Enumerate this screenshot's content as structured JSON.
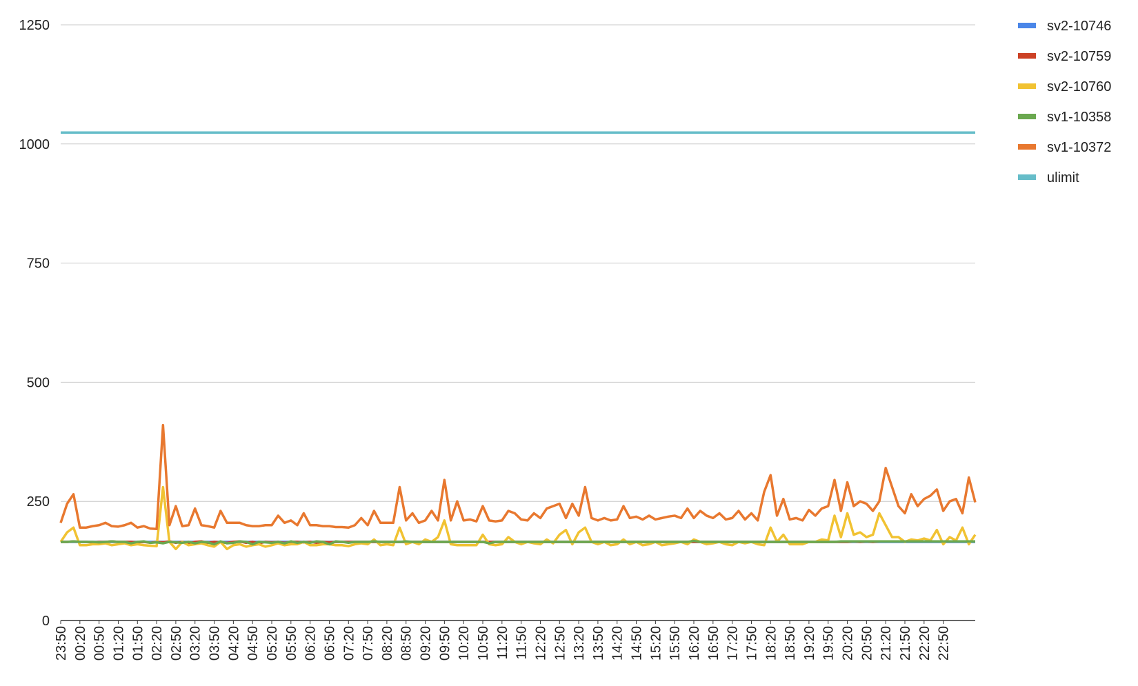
{
  "chart_data": {
    "type": "line",
    "categories": [
      "23:50",
      null,
      null,
      "00:20",
      null,
      null,
      "00:50",
      null,
      null,
      "01:20",
      null,
      null,
      "01:50",
      null,
      null,
      "02:20",
      null,
      null,
      "02:50",
      null,
      null,
      "03:20",
      null,
      null,
      "03:50",
      null,
      null,
      "04:20",
      null,
      null,
      "04:50",
      null,
      null,
      "05:20",
      null,
      null,
      "05:50",
      null,
      null,
      "06:20",
      null,
      null,
      "06:50",
      null,
      null,
      "07:20",
      null,
      null,
      "07:50",
      null,
      null,
      "08:20",
      null,
      null,
      "08:50",
      null,
      null,
      "09:20",
      null,
      null,
      "09:50",
      null,
      null,
      "10:20",
      null,
      null,
      "10:50",
      null,
      null,
      "11:20",
      null,
      null,
      "11:50",
      null,
      null,
      "12:20",
      null,
      null,
      "12:50",
      null,
      null,
      "13:20",
      null,
      null,
      "13:50",
      null,
      null,
      "14:20",
      null,
      null,
      "14:50",
      null,
      null,
      "15:20",
      null,
      null,
      "15:50",
      null,
      null,
      "16:20",
      null,
      null,
      "16:50",
      null,
      null,
      "17:20",
      null,
      null,
      "17:50",
      null,
      null,
      "18:20",
      null,
      null,
      "18:50",
      null,
      null,
      "19:20",
      null,
      null,
      "19:50",
      null,
      null,
      "20:20",
      null,
      null,
      "20:50",
      null,
      null,
      "21:20",
      null,
      null,
      "21:50",
      null,
      null,
      "22:20",
      null,
      null,
      "22:50",
      null,
      null,
      null,
      null,
      null
    ],
    "series": [
      {
        "name": "sv2-10746",
        "color": "#4a86e8",
        "values": [
          165,
          165,
          165,
          165,
          165,
          165,
          165,
          165,
          165,
          165,
          165,
          165,
          165,
          165,
          165,
          165,
          165,
          165,
          165,
          165,
          165,
          165,
          165,
          165,
          165,
          165,
          165,
          165,
          165,
          165,
          165,
          165,
          165,
          165,
          165,
          165,
          165,
          165,
          165,
          165,
          165,
          165,
          165,
          165,
          165,
          165,
          165,
          165,
          165,
          165,
          165,
          165,
          165,
          165,
          165,
          165,
          165,
          165,
          165,
          165,
          165,
          165,
          165,
          165,
          165,
          165,
          165,
          165,
          165,
          165,
          165,
          165,
          165,
          165,
          165,
          165,
          165,
          165,
          165,
          165,
          165,
          165,
          165,
          165,
          165,
          165,
          165,
          165,
          165,
          165,
          165,
          165,
          165,
          165,
          165,
          165,
          165,
          165,
          165,
          165,
          165,
          165,
          165,
          165,
          165,
          165,
          165,
          165,
          165,
          165,
          165,
          165,
          165,
          165,
          165,
          165,
          165,
          165,
          165,
          165,
          165,
          165,
          165,
          165,
          165,
          165,
          165,
          165,
          165,
          165,
          165,
          165,
          165,
          165,
          165,
          165,
          165,
          165,
          165,
          165,
          165,
          165,
          165,
          165
        ]
      },
      {
        "name": "sv2-10759",
        "color": "#cc4125",
        "values": [
          165,
          165,
          166,
          165,
          165,
          164,
          165,
          165,
          166,
          165,
          165,
          165,
          164,
          165,
          163,
          165,
          164,
          166,
          163,
          165,
          162,
          165,
          166,
          163,
          165,
          164,
          163,
          165,
          166,
          163,
          165,
          162,
          165,
          164,
          165,
          163,
          165,
          165,
          164,
          165,
          163,
          165,
          164,
          165,
          165,
          165,
          165,
          165,
          165,
          165,
          165,
          165,
          165,
          165,
          165,
          165,
          165,
          165,
          165,
          165,
          165,
          165,
          165,
          165,
          165,
          165,
          165,
          165,
          165,
          165,
          165,
          165,
          165,
          165,
          165,
          165,
          165,
          165,
          165,
          165,
          165,
          165,
          165,
          165,
          165,
          165,
          165,
          165,
          165,
          165,
          165,
          165,
          165,
          165,
          165,
          165,
          165,
          165,
          165,
          165,
          165,
          165,
          165,
          165,
          165,
          165,
          165,
          165,
          165,
          165,
          165,
          165,
          165,
          165,
          165,
          165,
          165,
          165,
          165,
          165,
          165,
          165,
          165,
          165,
          166,
          165,
          166,
          165,
          166,
          166,
          166,
          166,
          166,
          166,
          166,
          166,
          166,
          166,
          166,
          166,
          166,
          166,
          166,
          166
        ]
      },
      {
        "name": "sv2-10760",
        "color": "#f1c232",
        "values": [
          165,
          185,
          195,
          158,
          158,
          160,
          160,
          162,
          158,
          160,
          162,
          158,
          160,
          158,
          157,
          156,
          280,
          165,
          150,
          165,
          158,
          160,
          162,
          158,
          155,
          165,
          150,
          158,
          160,
          155,
          158,
          160,
          155,
          158,
          162,
          158,
          160,
          160,
          165,
          158,
          158,
          160,
          160,
          158,
          158,
          156,
          160,
          162,
          160,
          170,
          158,
          160,
          158,
          195,
          160,
          165,
          160,
          170,
          165,
          175,
          210,
          160,
          158,
          158,
          158,
          158,
          180,
          160,
          158,
          160,
          175,
          165,
          160,
          165,
          162,
          160,
          170,
          162,
          180,
          190,
          160,
          185,
          195,
          165,
          160,
          165,
          158,
          160,
          170,
          160,
          165,
          158,
          160,
          165,
          158,
          160,
          162,
          165,
          160,
          170,
          165,
          160,
          162,
          165,
          160,
          158,
          165,
          162,
          165,
          160,
          158,
          195,
          165,
          180,
          160,
          160,
          160,
          165,
          165,
          170,
          168,
          220,
          175,
          225,
          180,
          185,
          175,
          180,
          225,
          200,
          175,
          175,
          165,
          170,
          168,
          172,
          168,
          190,
          160,
          175,
          168,
          195,
          160,
          180
        ]
      },
      {
        "name": "sv1-10358",
        "color": "#6aa84f",
        "values": [
          165,
          165,
          166,
          165,
          165,
          165,
          164,
          165,
          166,
          165,
          165,
          162,
          165,
          166,
          163,
          164,
          162,
          165,
          164,
          163,
          165,
          162,
          165,
          164,
          160,
          166,
          162,
          163,
          166,
          165,
          160,
          165,
          164,
          163,
          165,
          162,
          166,
          163,
          165,
          163,
          166,
          165,
          160,
          166,
          165,
          163,
          165,
          165,
          165,
          166,
          165,
          165,
          165,
          165,
          166,
          165,
          165,
          165,
          165,
          165,
          165,
          165,
          165,
          165,
          165,
          165,
          165,
          162,
          165,
          165,
          165,
          165,
          165,
          165,
          165,
          165,
          165,
          165,
          165,
          165,
          165,
          165,
          165,
          165,
          165,
          165,
          165,
          165,
          165,
          165,
          165,
          165,
          165,
          165,
          165,
          165,
          165,
          165,
          165,
          167,
          165,
          165,
          165,
          165,
          165,
          165,
          165,
          165,
          165,
          165,
          165,
          165,
          165,
          165,
          165,
          165,
          165,
          165,
          165,
          165,
          165,
          165,
          166,
          166,
          166,
          166,
          166,
          166,
          166,
          166,
          166,
          166,
          166,
          166,
          166,
          166,
          166,
          166,
          166,
          166,
          166,
          166,
          166,
          166
        ]
      },
      {
        "name": "sv1-10372",
        "color": "#e8782f",
        "values": [
          205,
          245,
          265,
          195,
          195,
          198,
          200,
          205,
          198,
          197,
          200,
          205,
          195,
          198,
          193,
          192,
          410,
          200,
          240,
          198,
          200,
          235,
          200,
          198,
          195,
          230,
          205,
          205,
          205,
          200,
          198,
          198,
          200,
          200,
          220,
          205,
          210,
          200,
          225,
          200,
          200,
          198,
          198,
          196,
          196,
          195,
          200,
          215,
          200,
          230,
          205,
          205,
          205,
          280,
          210,
          225,
          205,
          210,
          230,
          210,
          295,
          210,
          250,
          210,
          212,
          208,
          240,
          210,
          208,
          210,
          230,
          225,
          212,
          210,
          225,
          215,
          235,
          240,
          245,
          215,
          245,
          220,
          280,
          215,
          210,
          215,
          210,
          212,
          240,
          215,
          218,
          212,
          220,
          212,
          215,
          218,
          220,
          215,
          235,
          215,
          230,
          220,
          215,
          225,
          212,
          215,
          230,
          212,
          225,
          210,
          270,
          305,
          220,
          255,
          212,
          215,
          210,
          232,
          220,
          235,
          240,
          295,
          230,
          290,
          240,
          250,
          245,
          230,
          250,
          320,
          280,
          240,
          225,
          265,
          240,
          255,
          262,
          275,
          230,
          250,
          255,
          225,
          300,
          248
        ]
      },
      {
        "name": "ulimit",
        "color": "#66bdc9",
        "values": [
          1024,
          1024,
          1024,
          1024,
          1024,
          1024,
          1024,
          1024,
          1024,
          1024,
          1024,
          1024,
          1024,
          1024,
          1024,
          1024,
          1024,
          1024,
          1024,
          1024,
          1024,
          1024,
          1024,
          1024,
          1024,
          1024,
          1024,
          1024,
          1024,
          1024,
          1024,
          1024,
          1024,
          1024,
          1024,
          1024,
          1024,
          1024,
          1024,
          1024,
          1024,
          1024,
          1024,
          1024,
          1024,
          1024,
          1024,
          1024,
          1024,
          1024,
          1024,
          1024,
          1024,
          1024,
          1024,
          1024,
          1024,
          1024,
          1024,
          1024,
          1024,
          1024,
          1024,
          1024,
          1024,
          1024,
          1024,
          1024,
          1024,
          1024,
          1024,
          1024,
          1024,
          1024,
          1024,
          1024,
          1024,
          1024,
          1024,
          1024,
          1024,
          1024,
          1024,
          1024,
          1024,
          1024,
          1024,
          1024,
          1024,
          1024,
          1024,
          1024,
          1024,
          1024,
          1024,
          1024,
          1024,
          1024,
          1024,
          1024,
          1024,
          1024,
          1024,
          1024,
          1024,
          1024,
          1024,
          1024,
          1024,
          1024,
          1024,
          1024,
          1024,
          1024,
          1024,
          1024,
          1024,
          1024,
          1024,
          1024,
          1024,
          1024,
          1024,
          1024,
          1024,
          1024,
          1024,
          1024,
          1024,
          1024,
          1024,
          1024,
          1024,
          1024,
          1024,
          1024,
          1024,
          1024,
          1024,
          1024,
          1024,
          1024,
          1024,
          1024
        ]
      }
    ],
    "ylim": [
      0,
      1250
    ],
    "yticks": [
      0,
      250,
      500,
      750,
      1000,
      1250
    ],
    "grid": true,
    "legend": "right"
  }
}
